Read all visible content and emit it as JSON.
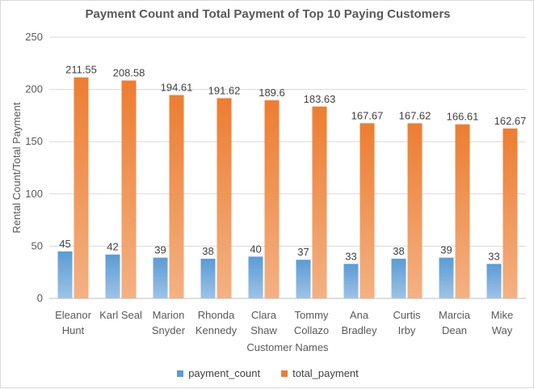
{
  "chart_data": {
    "type": "bar",
    "title": "Payment Count and Total Payment of Top 10 Paying Customers",
    "xlabel": "Customer Names",
    "ylabel": "Rental Count/Total Payment",
    "ylim": [
      0,
      250
    ],
    "yticks": [
      0,
      50,
      100,
      150,
      200,
      250
    ],
    "grid": true,
    "legend_position": "bottom",
    "categories": [
      [
        "Eleanor",
        "Hunt"
      ],
      [
        "Karl Seal"
      ],
      [
        "Marion",
        "Snyder"
      ],
      [
        "Rhonda",
        "Kennedy"
      ],
      [
        "Clara",
        "Shaw"
      ],
      [
        "Tommy",
        "Collazo"
      ],
      [
        "Ana",
        "Bradley"
      ],
      [
        "Curtis",
        "Irby"
      ],
      [
        "Marcia",
        "Dean"
      ],
      [
        "Mike",
        "Way"
      ]
    ],
    "series": [
      {
        "name": "payment_count",
        "color": "#5b9bd5",
        "labels": [
          "45",
          "42",
          "39",
          "38",
          "40",
          "37",
          "33",
          "38",
          "39",
          "33"
        ],
        "values": [
          45,
          42,
          39,
          38,
          40,
          37,
          33,
          38,
          39,
          33
        ]
      },
      {
        "name": "total_payment",
        "color": "#ed7d31",
        "labels": [
          "211.55",
          "208.58",
          "194.61",
          "191.62",
          "189.6",
          "183.63",
          "167.67",
          "167.62",
          "166.61",
          "162.67"
        ],
        "values": [
          211.55,
          208.58,
          194.61,
          191.62,
          189.6,
          183.63,
          167.67,
          167.62,
          166.61,
          162.67
        ]
      }
    ]
  }
}
